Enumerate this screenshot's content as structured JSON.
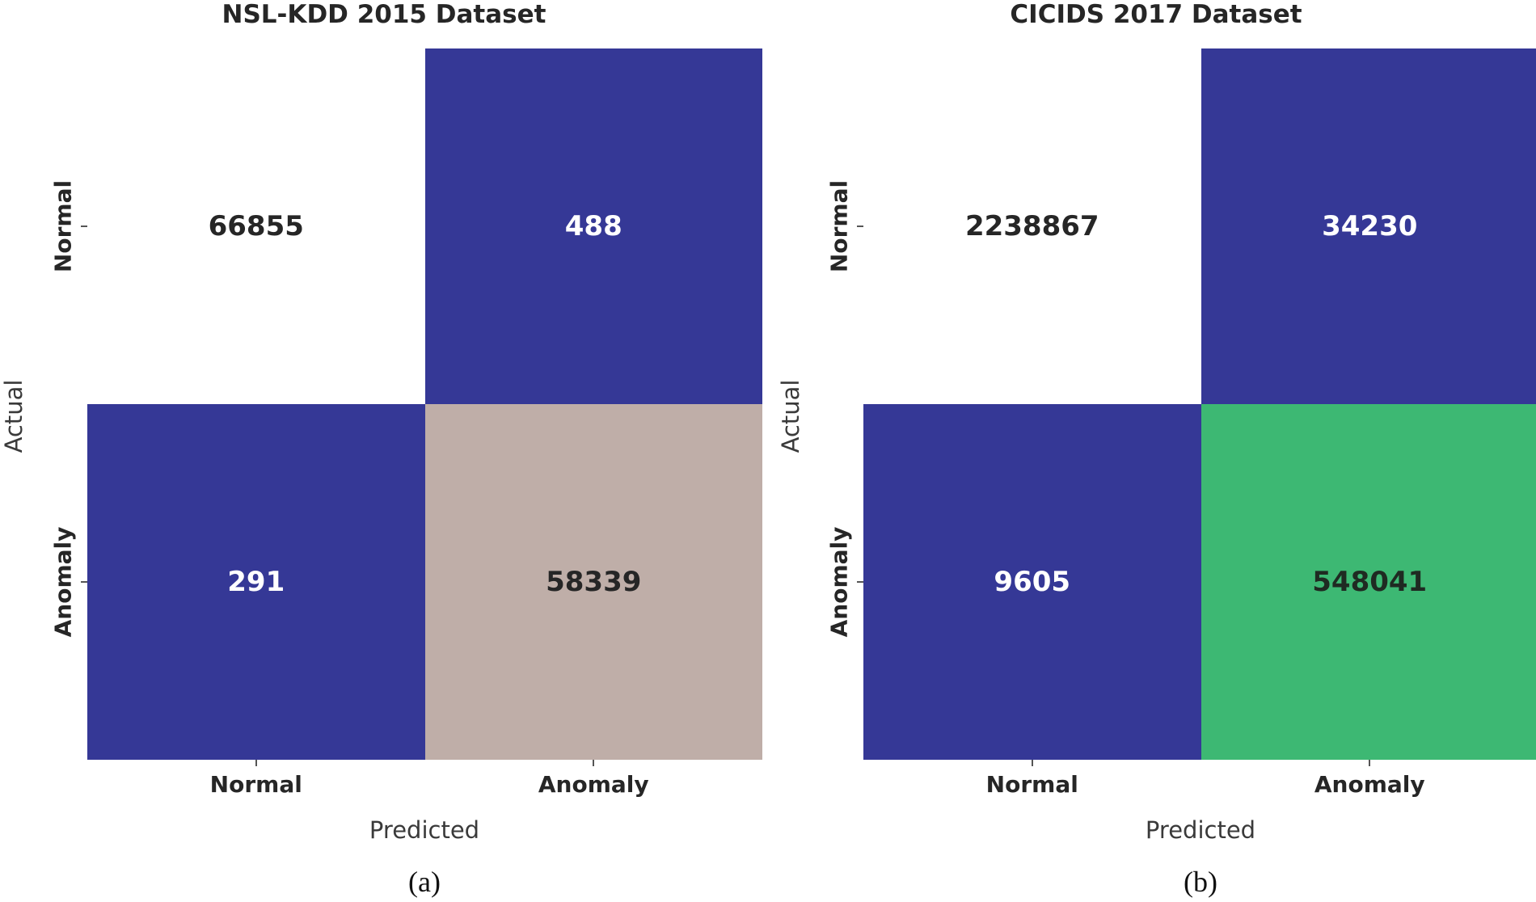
{
  "captions": [
    "(a)",
    "(b)"
  ],
  "chart_data": [
    {
      "type": "heatmap",
      "title": "NSL-KDD 2015 Dataset",
      "xlabel": "Predicted",
      "ylabel": "Actual",
      "x_categories": [
        "Normal",
        "Anomaly"
      ],
      "y_categories": [
        "Normal",
        "Anomaly"
      ],
      "values": [
        [
          66855,
          488
        ],
        [
          291,
          58339
        ]
      ],
      "cell_colors": [
        [
          "#ffffff",
          "#353896"
        ],
        [
          "#353896",
          "#bfaea8"
        ]
      ],
      "text_colors": [
        [
          "#262626",
          "#ffffff"
        ],
        [
          "#ffffff",
          "#262626"
        ]
      ],
      "colorbar": false,
      "grid": false
    },
    {
      "type": "heatmap",
      "title": "CICIDS 2017 Dataset",
      "xlabel": "Predicted",
      "ylabel": "Actual",
      "x_categories": [
        "Normal",
        "Anomaly"
      ],
      "y_categories": [
        "Normal",
        "Anomaly"
      ],
      "values": [
        [
          2238867,
          34230
        ],
        [
          9605,
          548041
        ]
      ],
      "cell_colors": [
        [
          "#ffffff",
          "#353896"
        ],
        [
          "#353896",
          "#3db873"
        ]
      ],
      "text_colors": [
        [
          "#262626",
          "#ffffff"
        ],
        [
          "#ffffff",
          "#1f2a22"
        ]
      ],
      "colorbar": false,
      "grid": false
    }
  ]
}
